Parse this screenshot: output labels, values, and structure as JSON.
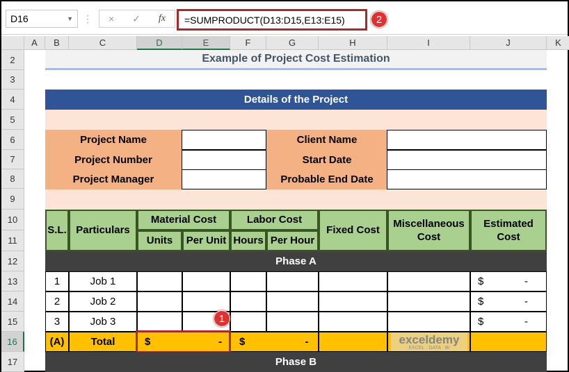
{
  "formula_bar": {
    "name_box": "D16",
    "cancel_icon": "×",
    "enter_icon": "✓",
    "fx": "fx",
    "formula": "=SUMPRODUCT(D13:D15,E13:E15)"
  },
  "columns": [
    "A",
    "B",
    "C",
    "D",
    "E",
    "F",
    "G",
    "H",
    "I",
    "J",
    "K"
  ],
  "rows": [
    "2",
    "3",
    "4",
    "5",
    "6",
    "7",
    "8",
    "9",
    "10",
    "11",
    "12",
    "13",
    "14",
    "15",
    "16",
    "17"
  ],
  "title": "Example of Project Cost Estimation",
  "details": {
    "header": "Details of the Project",
    "left_labels": [
      "Project Name",
      "Project Number",
      "Project Manager"
    ],
    "right_labels": [
      "Client Name",
      "Start Date",
      "Probable End Date"
    ]
  },
  "table": {
    "headers": {
      "sl": "S.L.",
      "particulars": "Particulars",
      "material": "Material Cost",
      "units": "Units",
      "per_unit": "Per Unit",
      "labor": "Labor Cost",
      "hours": "Hours",
      "per_hour": "Per Hour",
      "fixed": "Fixed Cost",
      "misc": "Miscellaneous Cost",
      "estimated": "Estimated Cost"
    },
    "phase_a": "Phase A",
    "phase_b": "Phase B",
    "jobs": [
      {
        "sl": "1",
        "name": "Job 1",
        "est_sym": "$",
        "est_val": "-"
      },
      {
        "sl": "2",
        "name": "Job 2",
        "est_sym": "$",
        "est_val": "-"
      },
      {
        "sl": "3",
        "name": "Job 3",
        "est_sym": "$",
        "est_val": "-"
      }
    ],
    "total": {
      "sl": "(A)",
      "label": "Total",
      "material_sym": "$",
      "material_val": "-",
      "labor_sym": "$",
      "labor_val": "-"
    }
  },
  "badges": [
    "1",
    "2"
  ],
  "watermark": {
    "name": "exceldemy",
    "tagline": "EXCEL · DATA · BI"
  },
  "colors": {
    "header_blue": "#2f5597",
    "peach": "#fce4d6",
    "orange": "#f4b183",
    "green": "#a9d08e",
    "dark": "#404040",
    "total": "#ffc000",
    "badge": "#e03131"
  }
}
